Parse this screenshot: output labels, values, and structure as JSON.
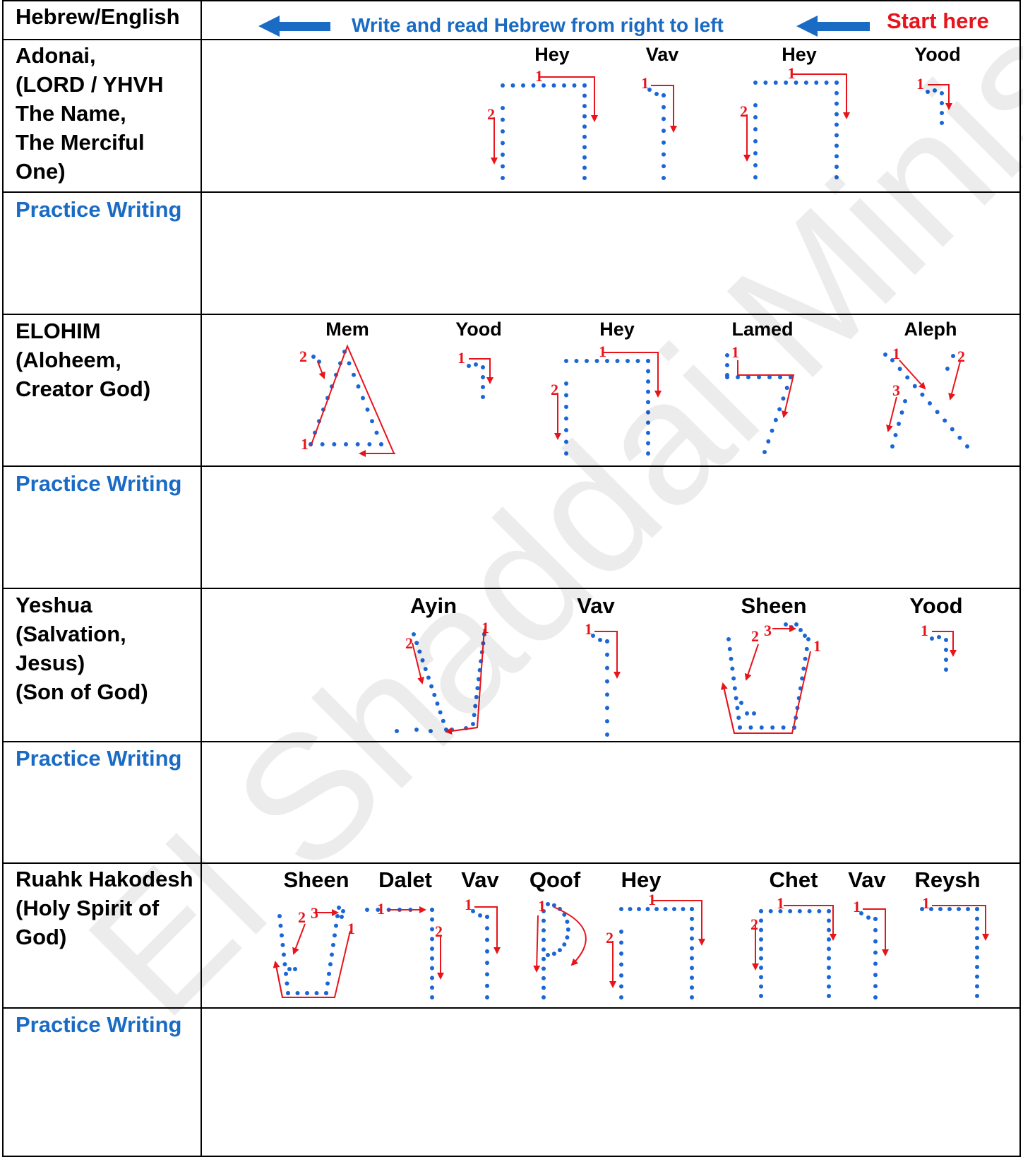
{
  "header": {
    "col_label": "Hebrew/English",
    "direction_note": "Write and read Hebrew from right to left",
    "start_label": "Start here"
  },
  "rows": [
    {
      "english": "Adonai,\n(LORD / YHVH\nThe Name,\nThe Merciful\nOne)",
      "letters": [
        "Hey",
        "Vav",
        "Hey",
        "Yood"
      ],
      "practice": "Practice Writing"
    },
    {
      "english": "ELOHIM\n(Aloheem,\nCreator God)",
      "letters": [
        "Mem",
        "Yood",
        "Hey",
        "Lamed",
        "Aleph"
      ],
      "practice": "Practice Writing"
    },
    {
      "english": "Yeshua\n(Salvation,\nJesus)\n(Son of God)",
      "letters": [
        "Ayin",
        "Vav",
        "Sheen",
        "Yood"
      ],
      "practice": "Practice Writing"
    },
    {
      "english": "Ruahk Hakodesh\n(Holy Spirit of\nGod)",
      "letters": [
        "Sheen",
        "Dalet",
        "Vav",
        "Qoof",
        "Hey",
        "Chet",
        "Vav",
        "Reysh"
      ],
      "practice": "Practice Writing"
    }
  ],
  "stroke_numbers": [
    "1",
    "2",
    "3"
  ],
  "watermark": "El Shaddai Ministries",
  "colors": {
    "dots": "#1a66d6",
    "arrows": "#e8141b",
    "heading_blue": "#1a6bc4",
    "start_red": "#e8141b"
  }
}
